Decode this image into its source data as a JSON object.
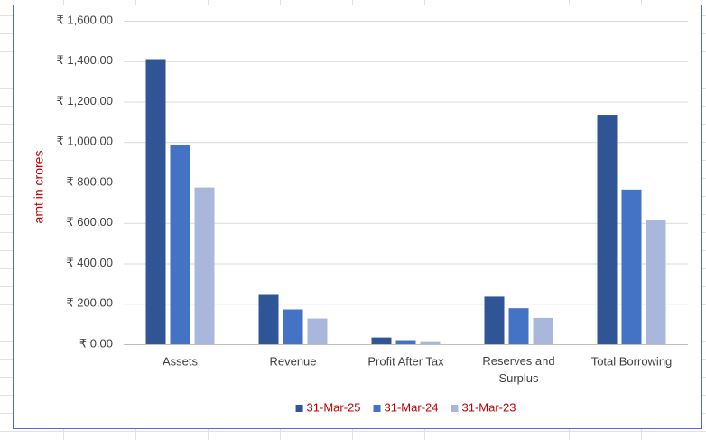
{
  "chart_data": {
    "type": "bar",
    "y_axis_label": "amt in crores",
    "categories": [
      "Assets",
      "Revenue",
      "Profit After Tax",
      "Reserves and Surplus",
      "Total Borrowing"
    ],
    "series": [
      {
        "name": "31-Mar-25",
        "color": "#2f5597",
        "values": [
          1410,
          248,
          33,
          235,
          1135
        ]
      },
      {
        "name": "31-Mar-24",
        "color": "#4472c4",
        "values": [
          985,
          172,
          20,
          178,
          765
        ]
      },
      {
        "name": "31-Mar-23",
        "color": "#a9b7dc",
        "values": [
          775,
          127,
          15,
          130,
          615
        ]
      }
    ],
    "ylim": [
      0,
      1600
    ],
    "yticks": [
      {
        "value": 0,
        "label": "₹ 0.00"
      },
      {
        "value": 200,
        "label": "₹ 200.00"
      },
      {
        "value": 400,
        "label": "₹ 400.00"
      },
      {
        "value": 600,
        "label": "₹ 600.00"
      },
      {
        "value": 800,
        "label": "₹ 800.00"
      },
      {
        "value": 1000,
        "label": "₹ 1,000.00"
      },
      {
        "value": 1200,
        "label": "₹ 1,200.00"
      },
      {
        "value": 1400,
        "label": "₹ 1,400.00"
      },
      {
        "value": 1600,
        "label": "₹ 1,600.00"
      }
    ],
    "grid": true,
    "legend_position": "bottom"
  }
}
